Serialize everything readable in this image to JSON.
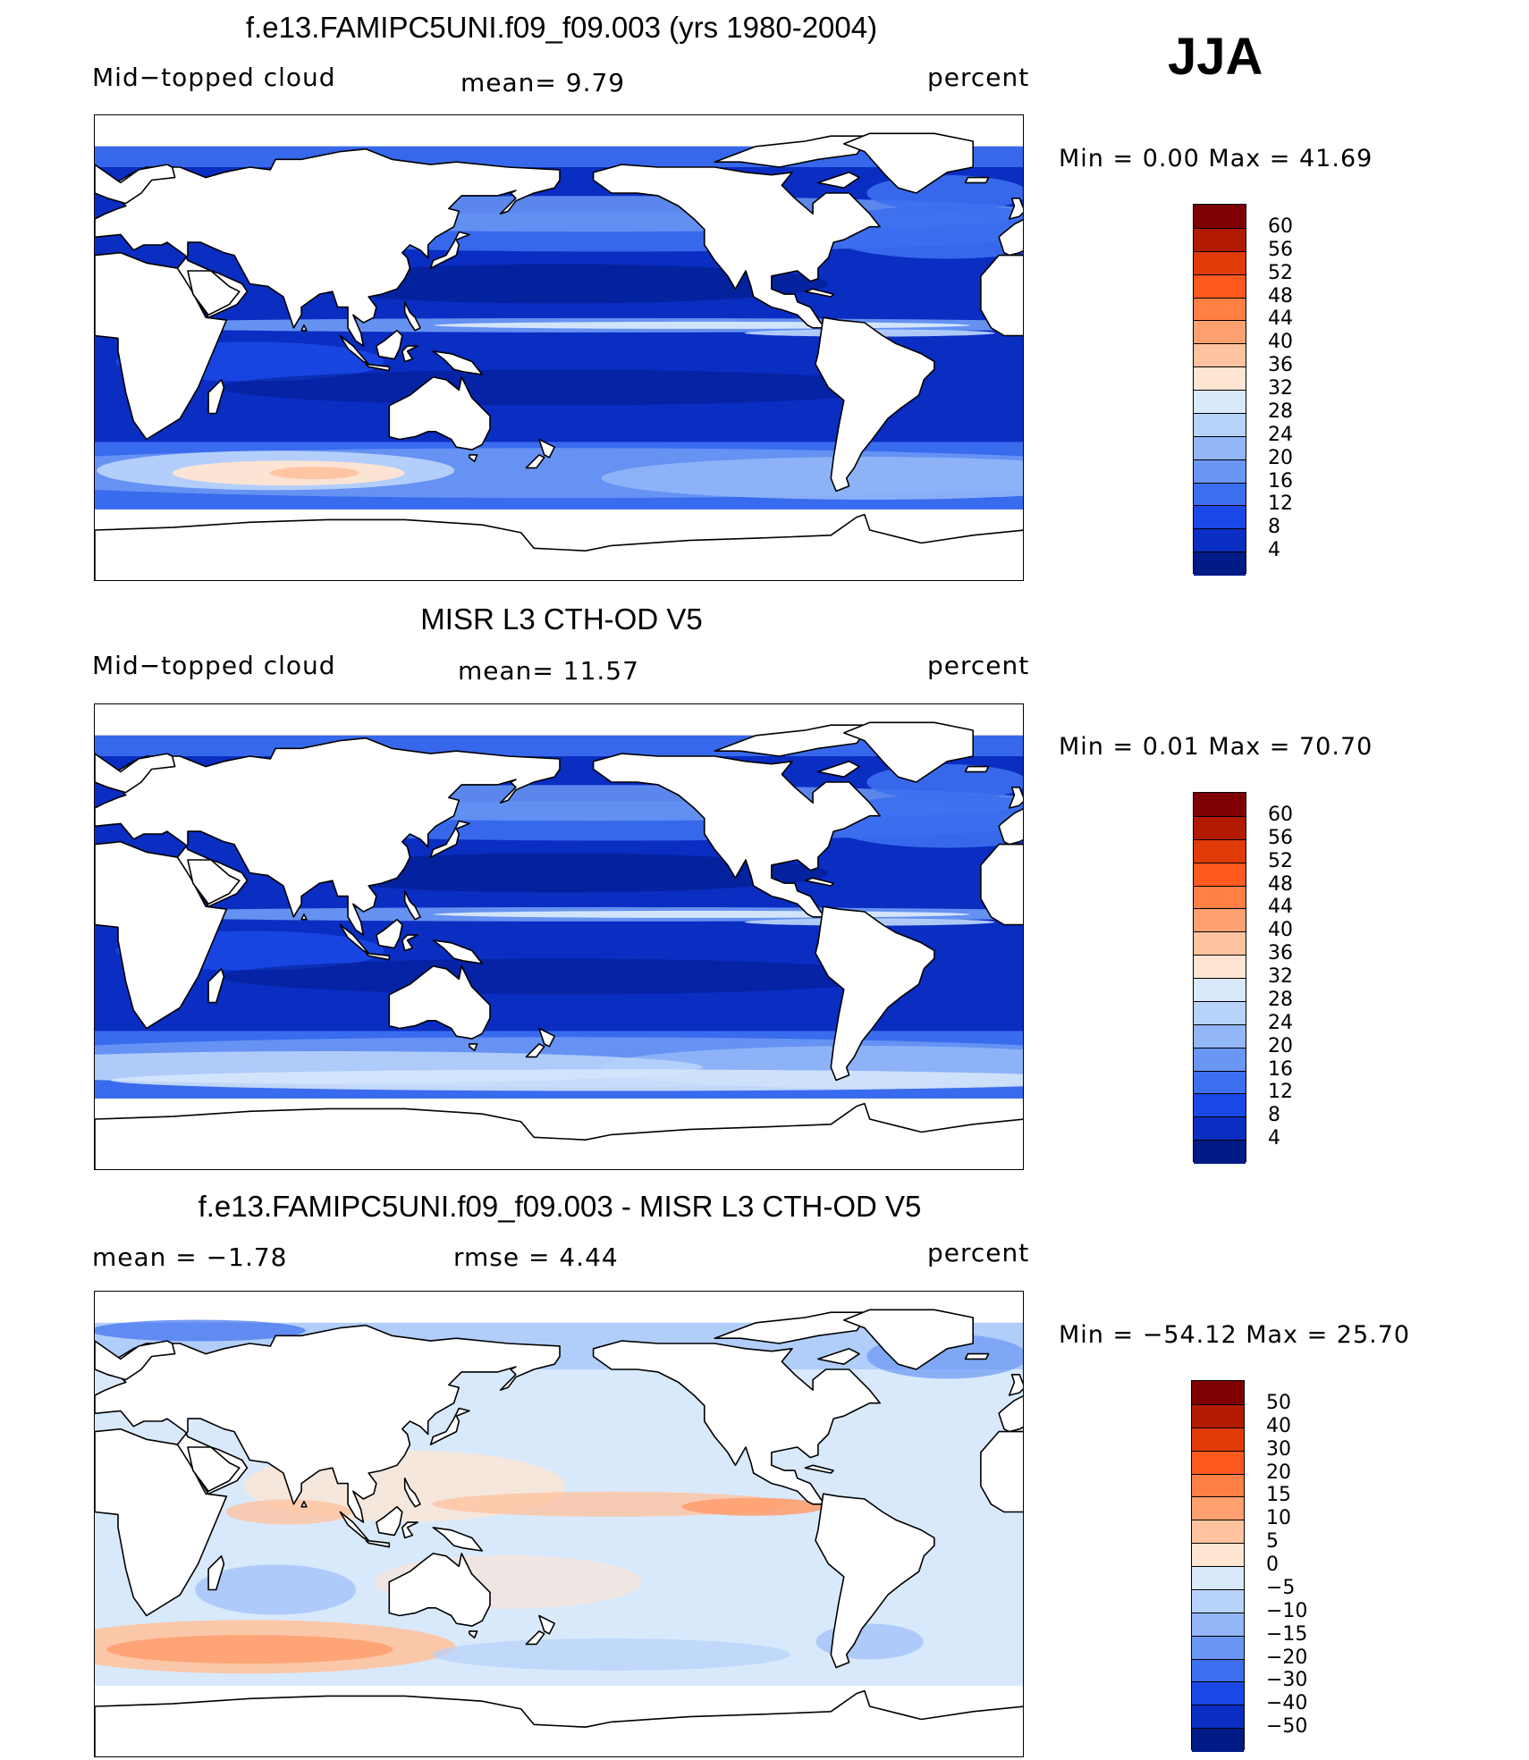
{
  "season": "JJA",
  "panels": [
    {
      "title": "f.e13.FAMIPC5UNI.f09_f09.003 (yrs 1980-2004)",
      "left_label": "Mid−topped  cloud",
      "center_label": "mean=    9.79",
      "right_label": "percent",
      "minmax": "Min  =     0.00  Max  =     41.69",
      "colorbar": {
        "labels": [
          "60",
          "56",
          "52",
          "48",
          "44",
          "40",
          "36",
          "32",
          "28",
          "24",
          "20",
          "16",
          "12",
          "8",
          "4"
        ],
        "colors": [
          "#7f0000",
          "#b21a00",
          "#e03a06",
          "#ff5a1e",
          "#ff7f45",
          "#ffa070",
          "#ffc3a0",
          "#ffe5d2",
          "#d8e9fc",
          "#b7d2fb",
          "#92b6f8",
          "#6a97f3",
          "#3c6ff0",
          "#1a48e6",
          "#0a2dc2",
          "#001a86"
        ]
      },
      "field": "model"
    },
    {
      "title": "MISR L3 CTH-OD V5",
      "left_label": "Mid−topped  cloud",
      "center_label": "mean=   11.57",
      "right_label": "percent",
      "minmax": "Min  =     0.01  Max  =     70.70",
      "colorbar": {
        "labels": [
          "60",
          "56",
          "52",
          "48",
          "44",
          "40",
          "36",
          "32",
          "28",
          "24",
          "20",
          "16",
          "12",
          "8",
          "4"
        ],
        "colors": [
          "#7f0000",
          "#b21a00",
          "#e03a06",
          "#ff5a1e",
          "#ff7f45",
          "#ffa070",
          "#ffc3a0",
          "#ffe5d2",
          "#d8e9fc",
          "#b7d2fb",
          "#92b6f8",
          "#6a97f3",
          "#3c6ff0",
          "#1a48e6",
          "#0a2dc2",
          "#001a86"
        ]
      },
      "field": "obs"
    },
    {
      "title": "f.e13.FAMIPC5UNI.f09_f09.003 - MISR L3 CTH-OD V5",
      "left_label": "mean  =    −1.78",
      "center_label": "rmse  =     4.44",
      "right_label": "percent",
      "minmax": "Min  =  −54.12  Max  =     25.70",
      "colorbar": {
        "labels": [
          "50",
          "40",
          "30",
          "20",
          "15",
          "10",
          "5",
          "0",
          "−5",
          "−10",
          "−15",
          "−20",
          "−30",
          "−40",
          "−50"
        ],
        "colors": [
          "#7f0000",
          "#b21a00",
          "#e03a06",
          "#ff5a1e",
          "#ff7f45",
          "#ffa070",
          "#ffc3a0",
          "#ffe5d2",
          "#d8e9fc",
          "#b7d2fb",
          "#92b6f8",
          "#6a97f3",
          "#3c6ff0",
          "#1a48e6",
          "#0a2dc2",
          "#001a86"
        ]
      },
      "field": "diff"
    }
  ]
}
